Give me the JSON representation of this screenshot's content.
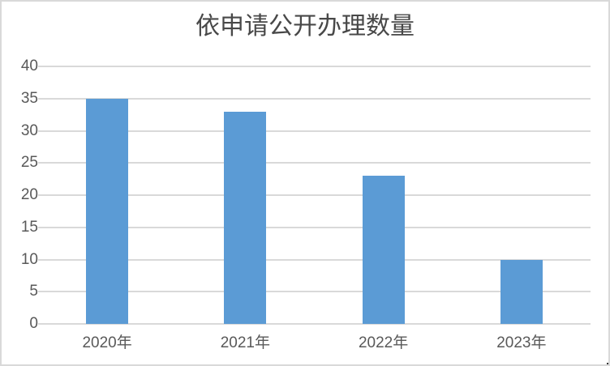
{
  "chart_data": {
    "type": "bar",
    "title": "依申请公开办理数量",
    "categories": [
      "2020年",
      "2021年",
      "2022年",
      "2023年"
    ],
    "values": [
      35,
      33,
      23,
      10
    ],
    "yticks": [
      0,
      5,
      10,
      15,
      20,
      25,
      30,
      35,
      40
    ],
    "ylim": [
      0,
      40
    ],
    "xlabel": "",
    "ylabel": "",
    "grid": true,
    "legend_position": "none",
    "colors": {
      "bar_fill": "#5B9BD5",
      "gridline": "#D9D9D9",
      "axis_text": "#595959",
      "title_text": "#484848",
      "chart_border": "#D9D9D9",
      "background": "#FFFFFF"
    }
  }
}
